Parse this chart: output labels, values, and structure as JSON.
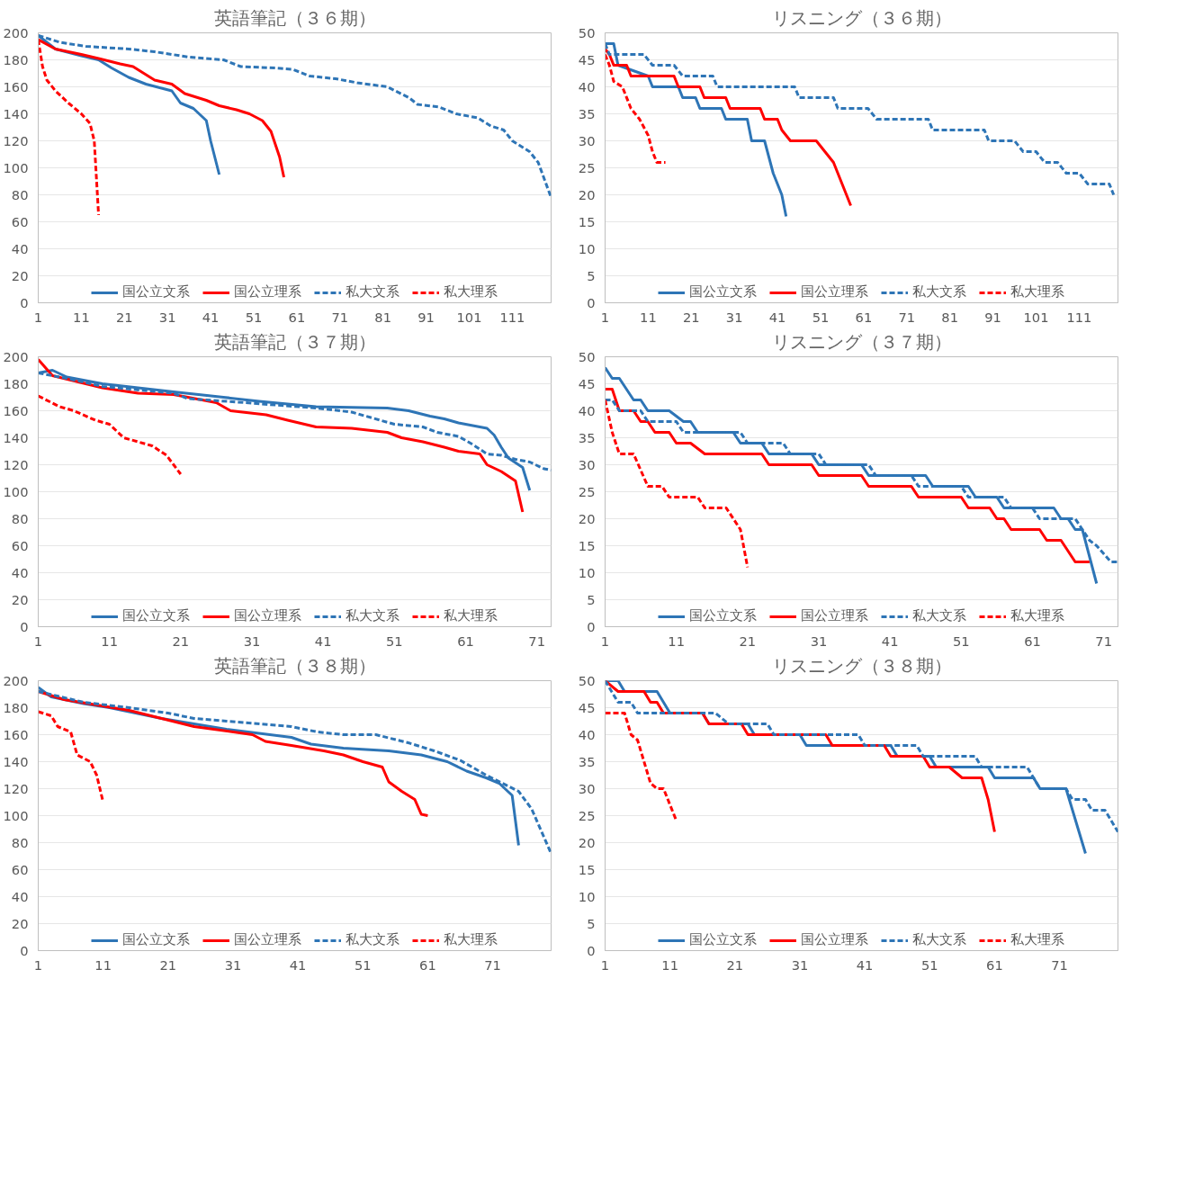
{
  "chart_data": [
    {
      "type": "line",
      "title": "英語筆記（３６期）",
      "xlim": [
        1,
        120
      ],
      "xticks": [
        1,
        11,
        21,
        31,
        41,
        51,
        61,
        71,
        81,
        91,
        101,
        111
      ],
      "ylim": [
        0,
        200
      ],
      "yticks": [
        0,
        20,
        40,
        60,
        80,
        100,
        120,
        140,
        160,
        180,
        200
      ],
      "grid": "y",
      "legend": "bottom",
      "series": [
        {
          "name": "国公立文系",
          "color": "#2e75b6",
          "line_style": "solid",
          "x": [
            1,
            5,
            11,
            15,
            18,
            22,
            26,
            32,
            34,
            37,
            40,
            41,
            43
          ],
          "values": [
            198,
            188,
            183,
            180,
            174,
            167,
            162,
            157,
            148,
            144,
            135,
            120,
            95
          ]
        },
        {
          "name": "国公立理系",
          "color": "#ff0000",
          "line_style": "solid",
          "x": [
            1,
            5,
            11,
            15,
            20,
            23,
            28,
            32,
            35,
            40,
            43,
            47,
            50,
            53,
            55,
            57,
            58
          ],
          "values": [
            195,
            188,
            184,
            181,
            177,
            175,
            165,
            162,
            155,
            150,
            146,
            143,
            140,
            135,
            127,
            108,
            93
          ]
        },
        {
          "name": "私大文系",
          "color": "#2e75b6",
          "line_style": "dashed",
          "x": [
            1,
            6,
            12,
            22,
            28,
            36,
            44,
            48,
            56,
            60,
            64,
            70,
            75,
            82,
            87,
            89,
            94,
            98,
            103,
            106,
            109,
            111,
            115,
            117,
            120
          ],
          "values": [
            198,
            193,
            190,
            188,
            186,
            182,
            180,
            175,
            174,
            173,
            168,
            166,
            163,
            160,
            152,
            147,
            145,
            140,
            137,
            131,
            128,
            120,
            112,
            104,
            78
          ]
        },
        {
          "name": "私大理系",
          "color": "#ff0000",
          "line_style": "dashed",
          "x": [
            1,
            2,
            3,
            5,
            8,
            11,
            13,
            14,
            15
          ],
          "values": [
            195,
            175,
            165,
            157,
            148,
            140,
            133,
            120,
            65
          ]
        }
      ]
    },
    {
      "type": "line",
      "title": "リスニング（３６期）",
      "xlim": [
        1,
        120
      ],
      "xticks": [
        1,
        11,
        21,
        31,
        41,
        51,
        61,
        71,
        81,
        91,
        101,
        111
      ],
      "ylim": [
        0,
        50
      ],
      "yticks": [
        0,
        5,
        10,
        15,
        20,
        25,
        30,
        35,
        40,
        45,
        50
      ],
      "grid": "y",
      "legend": "bottom",
      "series": [
        {
          "name": "国公立文系",
          "color": "#2e75b6",
          "line_style": "solid",
          "x": [
            1,
            3,
            4,
            11,
            12,
            18,
            19,
            22,
            23,
            28,
            29,
            34,
            35,
            38,
            39,
            40,
            42,
            43
          ],
          "values": [
            48,
            48,
            44,
            42,
            40,
            40,
            38,
            38,
            36,
            36,
            34,
            34,
            30,
            30,
            27,
            24,
            20,
            16
          ]
        },
        {
          "name": "国公立理系",
          "color": "#ff0000",
          "line_style": "solid",
          "x": [
            1,
            2,
            3,
            6,
            7,
            17,
            18,
            23,
            24,
            29,
            30,
            37,
            38,
            41,
            42,
            44,
            50,
            52,
            54,
            56,
            58
          ],
          "values": [
            47,
            46,
            44,
            44,
            42,
            42,
            40,
            40,
            38,
            38,
            36,
            36,
            34,
            34,
            32,
            30,
            30,
            28,
            26,
            22,
            18
          ]
        },
        {
          "name": "私大文系",
          "color": "#2e75b6",
          "line_style": "dashed",
          "x": [
            1,
            2,
            10,
            12,
            17,
            19,
            26,
            27,
            45,
            46,
            54,
            55,
            62,
            64,
            76,
            77,
            89,
            90,
            96,
            98,
            101,
            103,
            106,
            108,
            111,
            113,
            118,
            119
          ],
          "values": [
            48,
            46,
            46,
            44,
            44,
            42,
            42,
            40,
            40,
            38,
            38,
            36,
            36,
            34,
            34,
            32,
            32,
            30,
            30,
            28,
            28,
            26,
            26,
            24,
            24,
            22,
            22,
            20
          ]
        },
        {
          "name": "私大理系",
          "color": "#ff0000",
          "line_style": "dashed",
          "x": [
            1,
            2,
            3,
            5,
            7,
            9,
            11,
            12,
            13,
            15
          ],
          "values": [
            46,
            44,
            41,
            40,
            36,
            34,
            31,
            28,
            26,
            26
          ]
        }
      ]
    },
    {
      "type": "line",
      "title": "英語筆記（３７期）",
      "xlim": [
        1,
        73
      ],
      "xticks": [
        1,
        11,
        21,
        31,
        41,
        51,
        61,
        71
      ],
      "ylim": [
        0,
        200
      ],
      "yticks": [
        0,
        20,
        40,
        60,
        80,
        100,
        120,
        140,
        160,
        180,
        200
      ],
      "grid": "y",
      "legend": "bottom",
      "series": [
        {
          "name": "国公立文系",
          "color": "#2e75b6",
          "line_style": "solid",
          "x": [
            1,
            3,
            5,
            10,
            20,
            27,
            32,
            40,
            50,
            53,
            56,
            58,
            60,
            62,
            64,
            65,
            66,
            67,
            69,
            70
          ],
          "values": [
            188,
            190,
            185,
            180,
            174,
            170,
            167,
            163,
            162,
            160,
            156,
            154,
            151,
            149,
            147,
            142,
            133,
            125,
            118,
            101
          ]
        },
        {
          "name": "国公立理系",
          "color": "#ff0000",
          "line_style": "solid",
          "x": [
            1,
            3,
            10,
            15,
            20,
            24,
            26,
            28,
            33,
            36,
            40,
            45,
            50,
            52,
            55,
            58,
            60,
            63,
            64,
            66,
            68,
            69
          ],
          "values": [
            198,
            186,
            177,
            173,
            172,
            168,
            166,
            160,
            157,
            153,
            148,
            147,
            144,
            140,
            137,
            133,
            130,
            128,
            120,
            115,
            108,
            85
          ]
        },
        {
          "name": "私大文系",
          "color": "#2e75b6",
          "line_style": "dashed",
          "x": [
            1,
            5,
            10,
            20,
            22,
            30,
            40,
            45,
            49,
            51,
            55,
            57,
            60,
            62,
            64,
            66,
            68,
            70,
            72,
            73
          ],
          "values": [
            188,
            184,
            178,
            173,
            169,
            166,
            162,
            159,
            153,
            150,
            148,
            144,
            141,
            135,
            128,
            127,
            124,
            122,
            117,
            116
          ]
        },
        {
          "name": "私大理系",
          "color": "#ff0000",
          "line_style": "dashed",
          "x": [
            1,
            4,
            6,
            9,
            11,
            13,
            15,
            17,
            19,
            20,
            21
          ],
          "values": [
            171,
            163,
            160,
            153,
            150,
            140,
            137,
            134,
            127,
            120,
            113
          ]
        }
      ]
    },
    {
      "type": "line",
      "title": "リスニング（３７期）",
      "xlim": [
        1,
        73
      ],
      "xticks": [
        1,
        11,
        21,
        31,
        41,
        51,
        61,
        71
      ],
      "ylim": [
        0,
        50
      ],
      "yticks": [
        0,
        5,
        10,
        15,
        20,
        25,
        30,
        35,
        40,
        45,
        50
      ],
      "grid": "y",
      "legend": "bottom",
      "series": [
        {
          "name": "国公立文系",
          "color": "#2e75b6",
          "line_style": "solid",
          "x": [
            1,
            2,
            3,
            5,
            6,
            7,
            10,
            12,
            13,
            14,
            19,
            20,
            23,
            24,
            30,
            31,
            37,
            38,
            46,
            47,
            52,
            53,
            56,
            57,
            64,
            65,
            66,
            67,
            68,
            70
          ],
          "values": [
            48,
            46,
            46,
            42,
            42,
            40,
            40,
            38,
            38,
            36,
            36,
            34,
            34,
            32,
            32,
            30,
            30,
            28,
            28,
            26,
            26,
            24,
            24,
            22,
            22,
            20,
            20,
            18,
            18,
            8
          ]
        },
        {
          "name": "国公立理系",
          "color": "#ff0000",
          "line_style": "solid",
          "x": [
            1,
            2,
            3,
            5,
            6,
            7,
            8,
            10,
            11,
            13,
            15,
            23,
            24,
            30,
            31,
            37,
            38,
            44,
            45,
            51,
            52,
            55,
            56,
            57,
            58,
            62,
            63,
            65,
            67,
            69
          ],
          "values": [
            44,
            44,
            40,
            40,
            38,
            38,
            36,
            36,
            34,
            34,
            32,
            32,
            30,
            30,
            28,
            28,
            26,
            26,
            24,
            24,
            22,
            22,
            20,
            20,
            18,
            18,
            16,
            16,
            12,
            12
          ]
        },
        {
          "name": "私大文系",
          "color": "#2e75b6",
          "line_style": "dashed",
          "x": [
            1,
            2,
            3,
            6,
            7,
            11,
            12,
            20,
            21,
            26,
            27,
            31,
            32,
            38,
            39,
            44,
            45,
            51,
            52,
            57,
            58,
            61,
            62,
            67,
            68,
            69,
            70,
            72,
            73
          ],
          "values": [
            42,
            42,
            40,
            40,
            38,
            38,
            36,
            36,
            34,
            34,
            32,
            32,
            30,
            30,
            28,
            28,
            26,
            26,
            24,
            24,
            22,
            22,
            20,
            20,
            18,
            16,
            15,
            12,
            12
          ]
        },
        {
          "name": "私大理系",
          "color": "#ff0000",
          "line_style": "dashed",
          "x": [
            1,
            2,
            3,
            5,
            7,
            9,
            10,
            14,
            15,
            18,
            19,
            20,
            21
          ],
          "values": [
            42,
            36,
            32,
            32,
            26,
            26,
            24,
            24,
            22,
            22,
            20,
            18,
            11
          ]
        }
      ]
    },
    {
      "type": "line",
      "title": "英語筆記（３８期）",
      "xlim": [
        1,
        80
      ],
      "xticks": [
        1,
        11,
        21,
        31,
        41,
        51,
        61,
        71
      ],
      "ylim": [
        0,
        200
      ],
      "yticks": [
        0,
        20,
        40,
        60,
        80,
        100,
        120,
        140,
        160,
        180,
        200
      ],
      "grid": "y",
      "legend": "bottom",
      "series": [
        {
          "name": "国公立文系",
          "color": "#2e75b6",
          "line_style": "solid",
          "x": [
            1,
            3,
            8,
            12,
            20,
            30,
            40,
            43,
            48,
            55,
            60,
            64,
            67,
            70,
            72,
            74,
            75
          ],
          "values": [
            195,
            188,
            183,
            180,
            172,
            164,
            158,
            153,
            150,
            148,
            145,
            140,
            133,
            128,
            124,
            115,
            78
          ]
        },
        {
          "name": "国公立理系",
          "color": "#ff0000",
          "line_style": "solid",
          "x": [
            1,
            5,
            10,
            15,
            20,
            25,
            34,
            36,
            40,
            45,
            48,
            51,
            54,
            55,
            57,
            59,
            60,
            61
          ],
          "values": [
            192,
            186,
            182,
            178,
            172,
            166,
            160,
            155,
            152,
            148,
            145,
            140,
            136,
            125,
            118,
            112,
            101,
            100
          ]
        },
        {
          "name": "私大文系",
          "color": "#2e75b6",
          "line_style": "dashed",
          "x": [
            1,
            8,
            15,
            21,
            25,
            30,
            40,
            44,
            48,
            53,
            58,
            62,
            66,
            70,
            75,
            77,
            80
          ],
          "values": [
            192,
            184,
            180,
            176,
            172,
            170,
            166,
            162,
            160,
            160,
            154,
            148,
            141,
            130,
            118,
            105,
            72
          ]
        },
        {
          "name": "私大理系",
          "color": "#ff0000",
          "line_style": "dashed",
          "x": [
            1,
            3,
            4,
            6,
            7,
            9,
            10,
            11
          ],
          "values": [
            177,
            174,
            166,
            162,
            145,
            140,
            130,
            110
          ]
        }
      ]
    },
    {
      "type": "line",
      "title": "リスニング（３８期）",
      "xlim": [
        1,
        80
      ],
      "xticks": [
        1,
        11,
        21,
        31,
        41,
        51,
        61,
        71
      ],
      "ylim": [
        0,
        50
      ],
      "yticks": [
        0,
        5,
        10,
        15,
        20,
        25,
        30,
        35,
        40,
        45,
        50
      ],
      "grid": "y",
      "legend": "bottom",
      "series": [
        {
          "name": "国公立文系",
          "color": "#2e75b6",
          "line_style": "solid",
          "x": [
            1,
            3,
            4,
            9,
            10,
            11,
            16,
            17,
            23,
            24,
            31,
            32,
            45,
            46,
            51,
            52,
            60,
            61,
            67,
            68,
            72,
            73,
            74,
            75
          ],
          "values": [
            50,
            50,
            48,
            48,
            46,
            44,
            44,
            42,
            42,
            40,
            40,
            38,
            38,
            36,
            36,
            34,
            34,
            32,
            32,
            30,
            30,
            26,
            22,
            18
          ]
        },
        {
          "name": "国公立理系",
          "color": "#ff0000",
          "line_style": "solid",
          "x": [
            1,
            3,
            7,
            8,
            9,
            10,
            16,
            17,
            22,
            23,
            35,
            36,
            44,
            45,
            50,
            51,
            54,
            56,
            59,
            60,
            61
          ],
          "values": [
            50,
            48,
            48,
            46,
            46,
            44,
            44,
            42,
            42,
            40,
            40,
            38,
            38,
            36,
            36,
            34,
            34,
            32,
            32,
            28,
            22
          ]
        },
        {
          "name": "私大文系",
          "color": "#2e75b6",
          "line_style": "dashed",
          "x": [
            1,
            2,
            3,
            5,
            6,
            18,
            20,
            26,
            27,
            40,
            41,
            49,
            50,
            58,
            59,
            66,
            67,
            68,
            72,
            73,
            75,
            76,
            78,
            80
          ],
          "values": [
            50,
            48,
            46,
            46,
            44,
            44,
            42,
            42,
            40,
            40,
            38,
            38,
            36,
            36,
            34,
            34,
            32,
            30,
            30,
            28,
            28,
            26,
            26,
            22
          ]
        },
        {
          "name": "私大理系",
          "color": "#ff0000",
          "line_style": "dashed",
          "x": [
            1,
            4,
            5,
            6,
            8,
            9,
            10,
            12
          ],
          "values": [
            44,
            44,
            40,
            39,
            31,
            30,
            30,
            24
          ]
        }
      ]
    }
  ]
}
